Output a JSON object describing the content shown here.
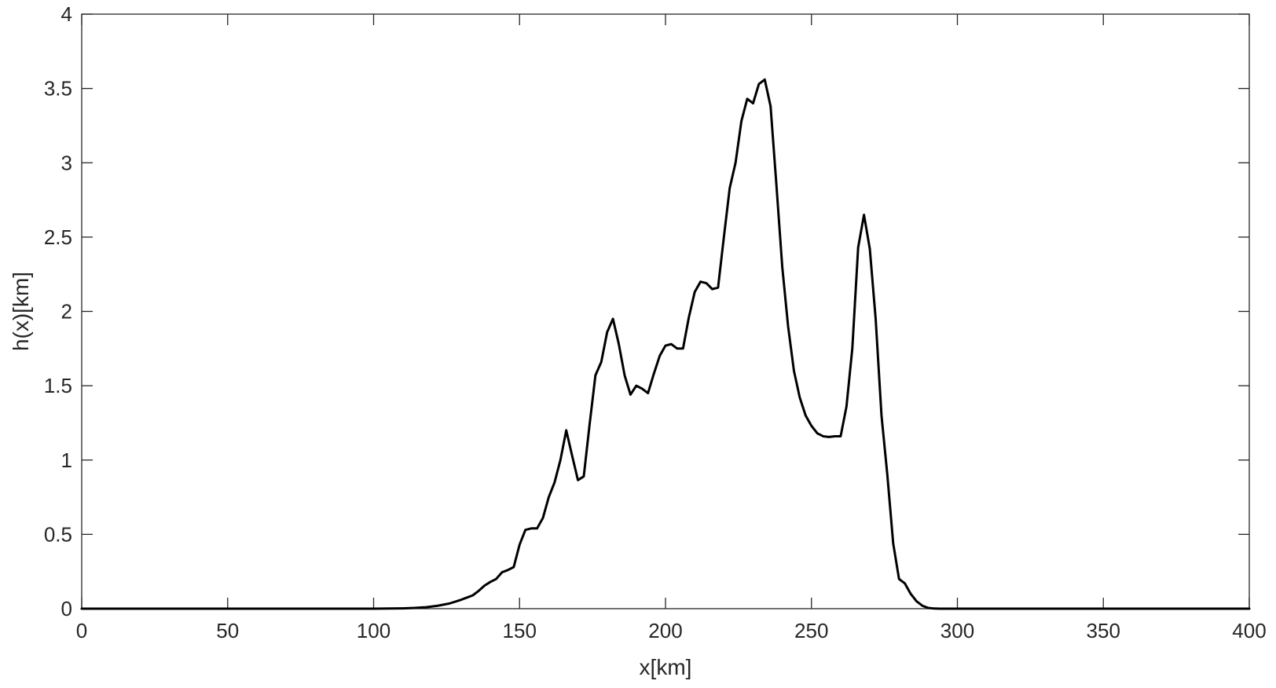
{
  "chart_data": {
    "type": "line",
    "title": "",
    "xlabel": "x[km]",
    "ylabel": "h(x)[km]",
    "xlim": [
      0,
      400
    ],
    "ylim": [
      0,
      4
    ],
    "xticks": [
      0,
      50,
      100,
      150,
      200,
      250,
      300,
      350,
      400
    ],
    "xtick_labels": [
      "0",
      "50",
      "100",
      "150",
      "200",
      "250",
      "300",
      "350",
      "400"
    ],
    "yticks": [
      0,
      0.5,
      1,
      1.5,
      2,
      2.5,
      3,
      3.5,
      4
    ],
    "ytick_labels": [
      "0",
      "0.5",
      "1",
      "1.5",
      "2",
      "2.5",
      "3",
      "3.5",
      "4"
    ],
    "grid": false,
    "box": true,
    "colors": {
      "line": "#000000",
      "axes": "#262626",
      "background": "#ffffff"
    },
    "series": [
      {
        "x": [
          0,
          100,
          110,
          114,
          118,
          122,
          126,
          130,
          132,
          134,
          136,
          138,
          140,
          142,
          144,
          146,
          148,
          150,
          152,
          154,
          156,
          158,
          160,
          162,
          164,
          166,
          168,
          170,
          172,
          174,
          176,
          178,
          180,
          182,
          184,
          186,
          188,
          190,
          192,
          194,
          196,
          198,
          200,
          202,
          204,
          206,
          208,
          210,
          212,
          214,
          216,
          218,
          220,
          222,
          224,
          226,
          228,
          230,
          232,
          234,
          236,
          238,
          240,
          242,
          244,
          246,
          248,
          250,
          252,
          254,
          256,
          258,
          260,
          262,
          264,
          266,
          268,
          270,
          272,
          274,
          276,
          278,
          280,
          282,
          284,
          286,
          288,
          290,
          292,
          294,
          300,
          400
        ],
        "y": [
          0,
          0,
          0.002,
          0.005,
          0.01,
          0.02,
          0.035,
          0.06,
          0.075,
          0.09,
          0.12,
          0.155,
          0.18,
          0.2,
          0.245,
          0.26,
          0.28,
          0.43,
          0.53,
          0.54,
          0.54,
          0.61,
          0.75,
          0.85,
          1.0,
          1.2,
          1.03,
          0.865,
          0.89,
          1.24,
          1.57,
          1.66,
          1.86,
          1.95,
          1.78,
          1.57,
          1.44,
          1.5,
          1.48,
          1.45,
          1.58,
          1.7,
          1.77,
          1.78,
          1.75,
          1.75,
          1.96,
          2.13,
          2.2,
          2.19,
          2.15,
          2.16,
          2.5,
          2.83,
          3.0,
          3.28,
          3.43,
          3.4,
          3.53,
          3.56,
          3.38,
          2.85,
          2.3,
          1.9,
          1.6,
          1.42,
          1.3,
          1.23,
          1.18,
          1.16,
          1.155,
          1.16,
          1.16,
          1.36,
          1.75,
          2.43,
          2.65,
          2.42,
          1.95,
          1.3,
          0.9,
          0.44,
          0.2,
          0.17,
          0.1,
          0.05,
          0.02,
          0.005,
          0.001,
          0,
          0,
          0
        ]
      }
    ]
  }
}
